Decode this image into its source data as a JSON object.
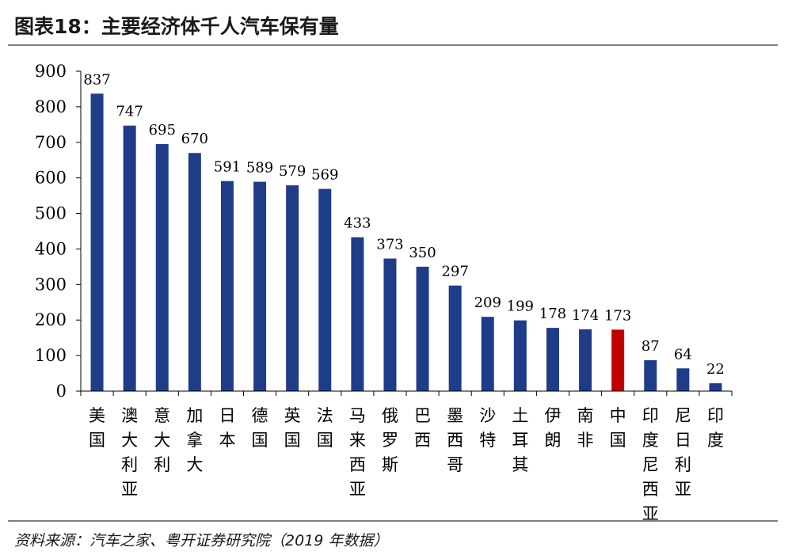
{
  "title": "图表18：主要经济体千人汽车保有量",
  "source": "资料来源：汽车之家、粤开证券研究院（2019 年数据）",
  "chart_data": {
    "type": "bar",
    "categories": [
      "美国",
      "澳大利亚",
      "意大利",
      "加拿大",
      "日本",
      "德国",
      "英国",
      "法国",
      "马来西亚",
      "俄罗斯",
      "巴西",
      "墨西哥",
      "沙特",
      "土耳其",
      "伊朗",
      "南非",
      "中国",
      "印度尼西亚",
      "尼日利亚",
      "印度"
    ],
    "values": [
      837,
      747,
      695,
      670,
      591,
      589,
      579,
      569,
      433,
      373,
      350,
      297,
      209,
      199,
      178,
      174,
      173,
      87,
      64,
      22
    ],
    "data_labels": [
      "837",
      "747",
      "695",
      "670",
      "591",
      "589",
      "579",
      "569",
      "433",
      "373",
      "350",
      "297",
      "209",
      "199",
      "178",
      "174",
      "173",
      "87",
      "64",
      "22"
    ],
    "yticks": [
      "0",
      "100",
      "200",
      "300",
      "400",
      "500",
      "600",
      "700",
      "800",
      "900"
    ],
    "ylim": [
      0,
      900
    ],
    "grid": false,
    "bar_color": "#1f3c88",
    "highlight_color": "#c00000",
    "highlight_category": "中国"
  }
}
